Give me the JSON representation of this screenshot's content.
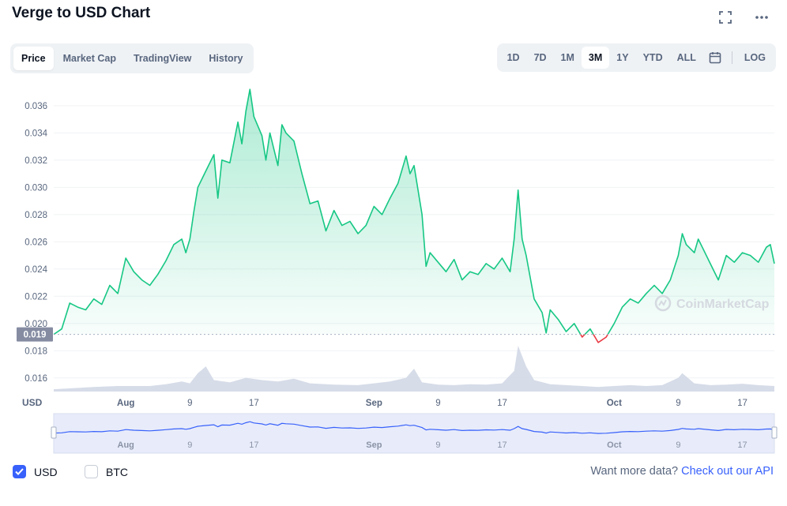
{
  "header": {
    "title": "Verge to USD Chart"
  },
  "icons": {
    "fullscreen": "fullscreen-icon",
    "more": "more-dots-icon",
    "calendar": "calendar-icon"
  },
  "tabs": [
    {
      "label": "Price",
      "active": true
    },
    {
      "label": "Market Cap",
      "active": false
    },
    {
      "label": "TradingView",
      "active": false
    },
    {
      "label": "History",
      "active": false
    }
  ],
  "ranges": [
    {
      "label": "1D",
      "active": false
    },
    {
      "label": "7D",
      "active": false
    },
    {
      "label": "1M",
      "active": false
    },
    {
      "label": "3M",
      "active": true
    },
    {
      "label": "1Y",
      "active": false
    },
    {
      "label": "YTD",
      "active": false
    },
    {
      "label": "ALL",
      "active": false
    }
  ],
  "log_label": "LOG",
  "watermark": "CoinMarketCap",
  "footer": {
    "usd_label": "USD",
    "usd_checked": true,
    "btc_label": "BTC",
    "btc_checked": false,
    "api_prompt": "Want more data?",
    "api_link": "Check out our API"
  },
  "colors": {
    "up": "#16c784",
    "down": "#ea3943",
    "accent": "#3861fb",
    "volume": "#cfd6e4",
    "nav_line": "#3861fb"
  },
  "chart_data": {
    "type": "area",
    "currency_label": "USD",
    "ylim": [
      0.015,
      0.0375
    ],
    "yticks": [
      "0.016",
      "0.018",
      "0.020",
      "0.022",
      "0.024",
      "0.026",
      "0.028",
      "0.030",
      "0.032",
      "0.034",
      "0.036"
    ],
    "baseline": 0.0192,
    "current_price_label": "0.019",
    "xticks": [
      {
        "label": "Aug",
        "day": 9,
        "bold": true
      },
      {
        "label": "9",
        "day": 17,
        "bold": false
      },
      {
        "label": "17",
        "day": 25,
        "bold": false
      },
      {
        "label": "Sep",
        "day": 40,
        "bold": true
      },
      {
        "label": "9",
        "day": 48,
        "bold": false
      },
      {
        "label": "17",
        "day": 56,
        "bold": false
      },
      {
        "label": "Oct",
        "day": 70,
        "bold": true
      },
      {
        "label": "9",
        "day": 78,
        "bold": false
      },
      {
        "label": "17",
        "day": 86,
        "bold": false
      }
    ],
    "xlim": [
      0,
      90
    ],
    "price": [
      [
        0,
        0.0192
      ],
      [
        1,
        0.0196
      ],
      [
        2,
        0.0215
      ],
      [
        3,
        0.0212
      ],
      [
        4,
        0.021
      ],
      [
        5,
        0.0218
      ],
      [
        6,
        0.0214
      ],
      [
        7,
        0.0228
      ],
      [
        8,
        0.0222
      ],
      [
        9,
        0.0248
      ],
      [
        10,
        0.0238
      ],
      [
        11,
        0.0232
      ],
      [
        12,
        0.0228
      ],
      [
        13,
        0.0236
      ],
      [
        14,
        0.0246
      ],
      [
        15,
        0.0258
      ],
      [
        16,
        0.0262
      ],
      [
        16.5,
        0.0252
      ],
      [
        17,
        0.0262
      ],
      [
        17.5,
        0.0282
      ],
      [
        18,
        0.03
      ],
      [
        19,
        0.0312
      ],
      [
        20,
        0.0324
      ],
      [
        20.5,
        0.0292
      ],
      [
        21,
        0.032
      ],
      [
        22,
        0.0318
      ],
      [
        23,
        0.0348
      ],
      [
        23.5,
        0.0332
      ],
      [
        24,
        0.0356
      ],
      [
        24.5,
        0.0372
      ],
      [
        25,
        0.0352
      ],
      [
        26,
        0.0338
      ],
      [
        26.5,
        0.032
      ],
      [
        27,
        0.034
      ],
      [
        28,
        0.0316
      ],
      [
        28.5,
        0.0346
      ],
      [
        29,
        0.034
      ],
      [
        30,
        0.0334
      ],
      [
        31,
        0.031
      ],
      [
        32,
        0.0288
      ],
      [
        33,
        0.029
      ],
      [
        34,
        0.0268
      ],
      [
        35,
        0.0283
      ],
      [
        36,
        0.0272
      ],
      [
        37,
        0.0275
      ],
      [
        38,
        0.0266
      ],
      [
        39,
        0.0272
      ],
      [
        40,
        0.0286
      ],
      [
        41,
        0.028
      ],
      [
        42,
        0.0292
      ],
      [
        43,
        0.0303
      ],
      [
        44,
        0.0323
      ],
      [
        44.5,
        0.031
      ],
      [
        45,
        0.0316
      ],
      [
        46,
        0.028
      ],
      [
        46.5,
        0.0242
      ],
      [
        47,
        0.0252
      ],
      [
        48,
        0.0245
      ],
      [
        49,
        0.0238
      ],
      [
        50,
        0.0247
      ],
      [
        51,
        0.0232
      ],
      [
        52,
        0.0238
      ],
      [
        53,
        0.0236
      ],
      [
        54,
        0.0244
      ],
      [
        55,
        0.024
      ],
      [
        56,
        0.0248
      ],
      [
        57,
        0.0238
      ],
      [
        57.5,
        0.0262
      ],
      [
        58,
        0.0298
      ],
      [
        58.5,
        0.0262
      ],
      [
        59,
        0.025
      ],
      [
        60,
        0.0218
      ],
      [
        61,
        0.0208
      ],
      [
        61.5,
        0.0193
      ],
      [
        62,
        0.021
      ],
      [
        63,
        0.0203
      ],
      [
        64,
        0.0194
      ],
      [
        65,
        0.02
      ],
      [
        66,
        0.019
      ],
      [
        67,
        0.0196
      ],
      [
        68,
        0.0186
      ],
      [
        69,
        0.019
      ],
      [
        70,
        0.02
      ],
      [
        71,
        0.0212
      ],
      [
        72,
        0.0218
      ],
      [
        73,
        0.0215
      ],
      [
        74,
        0.0222
      ],
      [
        75,
        0.0228
      ],
      [
        76,
        0.0222
      ],
      [
        77,
        0.0232
      ],
      [
        78,
        0.025
      ],
      [
        78.5,
        0.0266
      ],
      [
        79,
        0.0258
      ],
      [
        80,
        0.0252
      ],
      [
        80.5,
        0.0262
      ],
      [
        81,
        0.0256
      ],
      [
        82,
        0.0244
      ],
      [
        83,
        0.0232
      ],
      [
        84,
        0.025
      ],
      [
        85,
        0.0245
      ],
      [
        86,
        0.0252
      ],
      [
        87,
        0.025
      ],
      [
        88,
        0.0245
      ],
      [
        89,
        0.0256
      ],
      [
        89.5,
        0.0258
      ],
      [
        90,
        0.0244
      ]
    ],
    "volume": [
      [
        0,
        0.05
      ],
      [
        5,
        0.1
      ],
      [
        8,
        0.12
      ],
      [
        12,
        0.12
      ],
      [
        14,
        0.16
      ],
      [
        16,
        0.22
      ],
      [
        17,
        0.18
      ],
      [
        18,
        0.4
      ],
      [
        19,
        0.55
      ],
      [
        20,
        0.25
      ],
      [
        22,
        0.2
      ],
      [
        24,
        0.3
      ],
      [
        26,
        0.25
      ],
      [
        28,
        0.22
      ],
      [
        30,
        0.28
      ],
      [
        32,
        0.18
      ],
      [
        35,
        0.15
      ],
      [
        38,
        0.14
      ],
      [
        40,
        0.18
      ],
      [
        42,
        0.22
      ],
      [
        44,
        0.3
      ],
      [
        45,
        0.5
      ],
      [
        46,
        0.2
      ],
      [
        48,
        0.15
      ],
      [
        50,
        0.14
      ],
      [
        52,
        0.16
      ],
      [
        54,
        0.15
      ],
      [
        56,
        0.18
      ],
      [
        57.5,
        0.45
      ],
      [
        58,
        1.0
      ],
      [
        59,
        0.55
      ],
      [
        60,
        0.25
      ],
      [
        62,
        0.16
      ],
      [
        64,
        0.14
      ],
      [
        66,
        0.12
      ],
      [
        68,
        0.1
      ],
      [
        70,
        0.12
      ],
      [
        72,
        0.14
      ],
      [
        74,
        0.12
      ],
      [
        76,
        0.14
      ],
      [
        78,
        0.3
      ],
      [
        78.5,
        0.4
      ],
      [
        80,
        0.18
      ],
      [
        82,
        0.14
      ],
      [
        84,
        0.15
      ],
      [
        86,
        0.17
      ],
      [
        88,
        0.14
      ],
      [
        90,
        0.12
      ]
    ],
    "nav_xticks": [
      {
        "label": "Aug",
        "day": 9,
        "bold": true
      },
      {
        "label": "9",
        "day": 17,
        "bold": false
      },
      {
        "label": "17",
        "day": 25,
        "bold": false
      },
      {
        "label": "Sep",
        "day": 40,
        "bold": true
      },
      {
        "label": "9",
        "day": 48,
        "bold": false
      },
      {
        "label": "17",
        "day": 56,
        "bold": false
      },
      {
        "label": "Oct",
        "day": 70,
        "bold": true
      },
      {
        "label": "9",
        "day": 78,
        "bold": false
      },
      {
        "label": "17",
        "day": 86,
        "bold": false
      }
    ]
  }
}
